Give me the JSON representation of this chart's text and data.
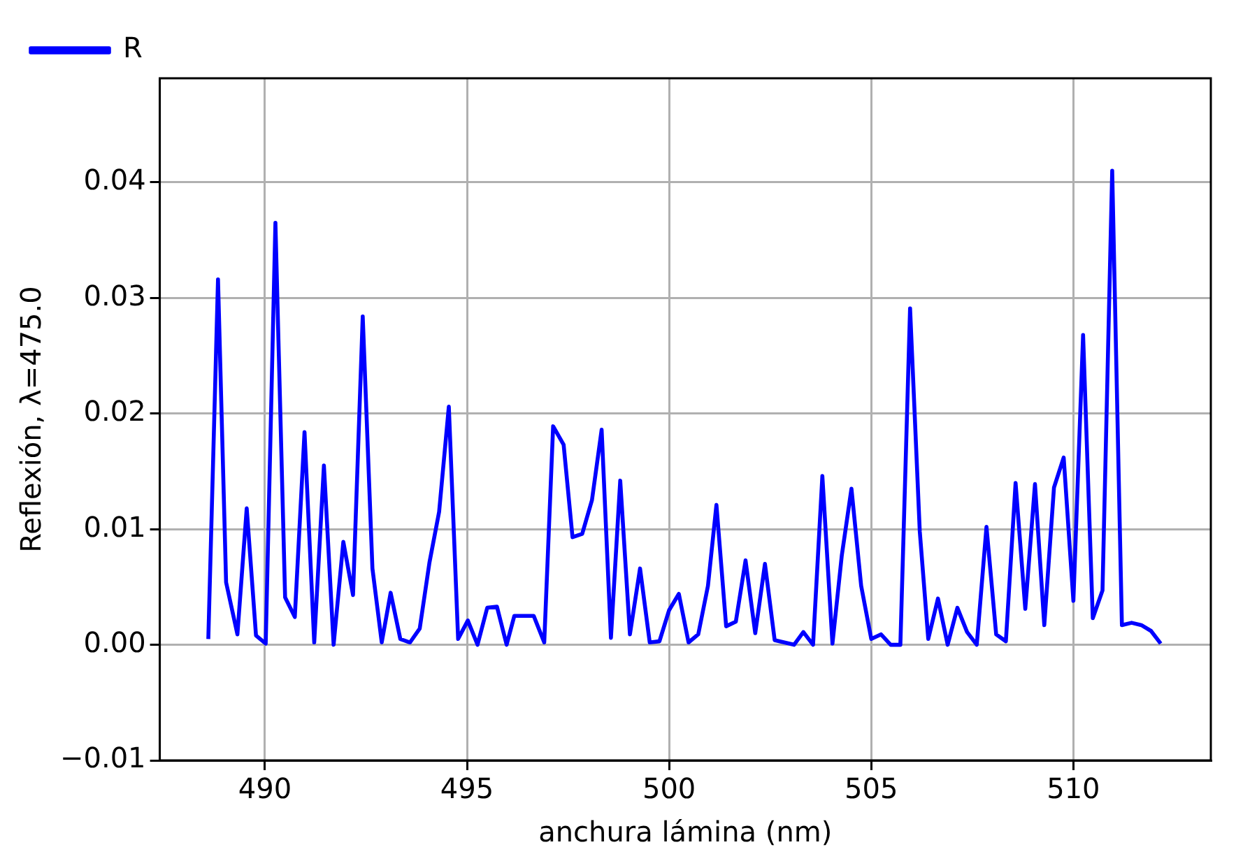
{
  "chart_data": {
    "type": "line",
    "xlabel": "anchura lámina (nm)",
    "ylabel": "Reflexión, λ=475.0",
    "xlim": [
      487.4,
      513.4
    ],
    "ylim": [
      -0.01,
      0.049
    ],
    "xticks": [
      490,
      495,
      500,
      505,
      510
    ],
    "yticks": [
      {
        "value": -0.01,
        "label": "−0.01"
      },
      {
        "value": 0,
        "label": "0.00"
      },
      0.01,
      0.02,
      0.03,
      0.04
    ],
    "grid": true,
    "legend": "top",
    "marker": "none",
    "line_style": "solid",
    "series": [
      {
        "name": "R",
        "color": "#0000ff",
        "x": [
          488.6,
          488.84,
          489.04,
          489.32,
          489.55,
          489.78,
          490.02,
          490.26,
          490.5,
          490.74,
          490.98,
          491.22,
          491.46,
          491.7,
          491.94,
          492.18,
          492.42,
          492.66,
          492.89,
          493.11,
          493.35,
          493.59,
          493.83,
          494.07,
          494.31,
          494.55,
          494.78,
          495.02,
          495.26,
          495.5,
          495.74,
          495.98,
          496.17,
          496.65,
          496.91,
          497.13,
          497.39,
          497.61,
          497.85,
          498.09,
          498.33,
          498.56,
          498.79,
          499.03,
          499.28,
          499.52,
          499.76,
          500.0,
          500.24,
          500.48,
          500.72,
          500.96,
          501.17,
          501.41,
          501.65,
          501.89,
          502.13,
          502.37,
          502.61,
          502.85,
          503.09,
          503.32,
          503.56,
          503.79,
          504.04,
          504.27,
          504.51,
          504.75,
          505.0,
          505.24,
          505.48,
          505.72,
          505.96,
          506.2,
          506.41,
          506.65,
          506.89,
          507.13,
          507.37,
          507.61,
          507.85,
          508.09,
          508.33,
          508.57,
          508.81,
          509.05,
          509.28,
          509.52,
          509.76,
          510.0,
          510.24,
          510.48,
          510.72,
          510.96,
          511.2,
          511.44,
          511.68,
          511.92,
          512.16
        ],
        "values": [
          0.0005,
          0.0316,
          0.0054,
          0.0009,
          0.0118,
          0.0008,
          0.0001,
          0.0365,
          0.0041,
          0.0024,
          0.0184,
          0.0002,
          0.0155,
          0.0,
          0.0089,
          0.0043,
          0.0284,
          0.0066,
          0.0002,
          0.0045,
          0.0005,
          0.0002,
          0.0014,
          0.0071,
          0.0115,
          0.0206,
          0.0005,
          0.0021,
          0.0,
          0.0032,
          0.0033,
          0.0,
          0.0025,
          0.0025,
          0.0002,
          0.0189,
          0.0173,
          0.0093,
          0.0096,
          0.0125,
          0.0186,
          0.0006,
          0.0142,
          0.0009,
          0.0066,
          0.0002,
          0.0003,
          0.003,
          0.0044,
          0.0002,
          0.0009,
          0.0051,
          0.0121,
          0.0016,
          0.002,
          0.0073,
          0.001,
          0.007,
          0.0004,
          0.0002,
          0.0,
          0.0011,
          0.0,
          0.0146,
          0.0001,
          0.0077,
          0.0135,
          0.0051,
          0.0005,
          0.0009,
          0.0,
          0.0,
          0.0291,
          0.0098,
          0.0005,
          0.004,
          0.0,
          0.0032,
          0.0011,
          0.0,
          0.0102,
          0.0009,
          0.0003,
          0.014,
          0.0031,
          0.0139,
          0.0017,
          0.0136,
          0.0162,
          0.0038,
          0.0268,
          0.0023,
          0.0047,
          0.041,
          0.0017,
          0.0019,
          0.0017,
          0.0012,
          0.0001
        ]
      }
    ]
  }
}
